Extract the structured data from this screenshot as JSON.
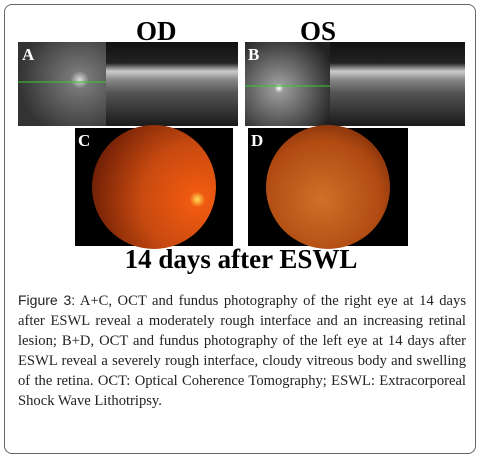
{
  "header": {
    "left": "OD",
    "right": "OS"
  },
  "panels": [
    {
      "label": "A"
    },
    {
      "label": "B"
    },
    {
      "label": "C"
    },
    {
      "label": "D"
    }
  ],
  "subtitle": "14 days after ESWL",
  "caption": {
    "label": "Figure 3:",
    "text": "A+C, OCT and fundus photography of the right eye at 14 days after ESWL reveal a moderately rough interface and an increasing retinal lesion; B+D, OCT and fundus photography of the left eye at 14 days after ESWL reveal a severely rough interface, cloudy vitreous body and swelling of the retina. OCT: Optical Coherence Tomography; ESWL: Extracorporeal Shock Wave Lithotripsy."
  }
}
